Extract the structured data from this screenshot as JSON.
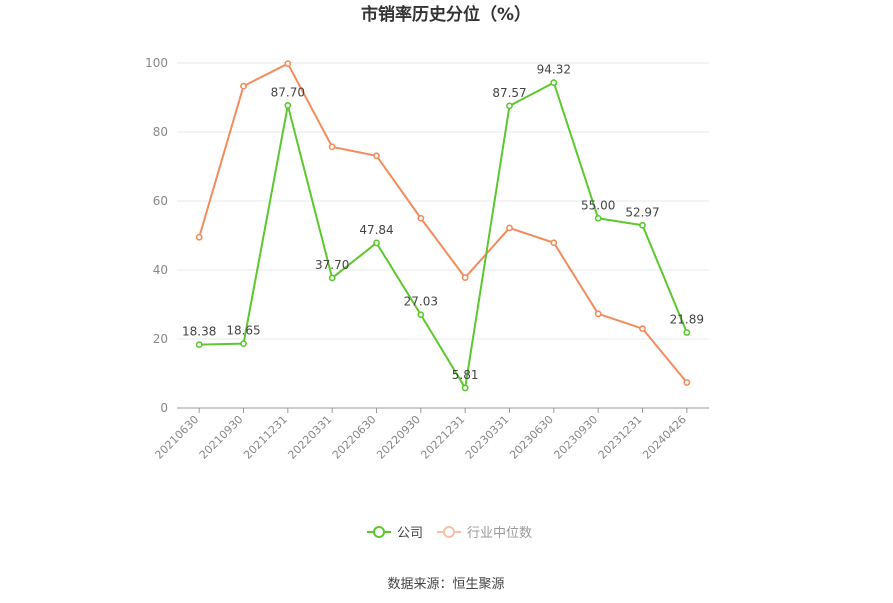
{
  "chart_data": {
    "type": "line",
    "title": "市销率历史分位（%）",
    "source": "数据来源：恒生聚源",
    "categories": [
      "20210630",
      "20210930",
      "20211231",
      "20220331",
      "20220630",
      "20220930",
      "20221231",
      "20230331",
      "20230630",
      "20230930",
      "20231231",
      "20240426"
    ],
    "ylim": [
      0,
      100
    ],
    "yticks": [
      0,
      20,
      40,
      60,
      80,
      100
    ],
    "grid": true,
    "legend_position": "bottom",
    "series": [
      {
        "name": "公司",
        "color": "#5cc72e",
        "values": [
          18.38,
          18.65,
          87.7,
          37.7,
          47.84,
          27.03,
          5.81,
          87.57,
          94.32,
          55.0,
          52.97,
          21.89
        ],
        "labels": [
          "18.38",
          "18.65",
          "87.70",
          "37.70",
          "47.84",
          "27.03",
          "5.81",
          "87.57",
          "94.32",
          "55.00",
          "52.97",
          "21.89"
        ]
      },
      {
        "name": "行业中位数",
        "color": "#f28c5c",
        "values": [
          49.5,
          93.3,
          99.8,
          75.7,
          73.1,
          55.0,
          37.8,
          52.2,
          47.9,
          27.3,
          23.0,
          7.4
        ]
      }
    ]
  }
}
